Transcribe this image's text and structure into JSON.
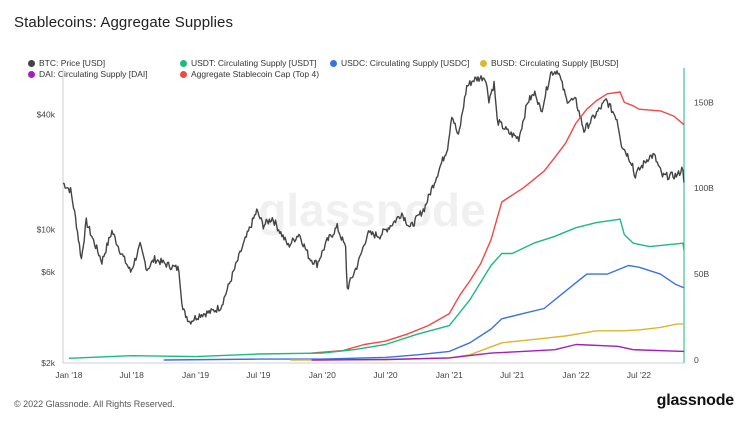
{
  "title": "Stablecoins: Aggregate Supplies",
  "footer": {
    "copyright": "© 2022 Glassnode. All Rights Reserved.",
    "logo": "glassnode"
  },
  "watermark": "glassnode",
  "legend": [
    {
      "label": "BTC: Price [USD]",
      "color": "#444444"
    },
    {
      "label": "USDT: Circulating Supply [USDT]",
      "color": "#1db97e"
    },
    {
      "label": "USDC: Circulating Supply [USDC]",
      "color": "#3b72e0"
    },
    {
      "label": "BUSD: Circulating Supply [BUSD]",
      "color": "#d8b830"
    },
    {
      "label": "DAI: Circulating Supply [DAI]",
      "color": "#a020b8"
    },
    {
      "label": "Aggregate Stablecoin Cap (Top 4)",
      "color": "#f04848"
    }
  ],
  "chart_data": {
    "type": "line",
    "title": "Stablecoins: Aggregate Supplies",
    "x_ticks": [
      "Jan '18",
      "Jul '18",
      "Jan '19",
      "Jul '19",
      "Jan '20",
      "Jul '20",
      "Jan '21",
      "Jul '21",
      "Jan '22",
      "Jul '22"
    ],
    "x_range": [
      "2017-12-15",
      "2022-11-08"
    ],
    "y_left": {
      "scale": "log",
      "range": [
        2000,
        70000
      ],
      "ticks": [
        "$2k",
        "$6k",
        "$10k",
        "$40k"
      ],
      "tick_values": [
        2000,
        6000,
        10000,
        40000
      ]
    },
    "y_right": {
      "scale": "linear",
      "range": [
        0,
        170
      ],
      "unit": "B",
      "ticks": [
        "0",
        "50B",
        "100B",
        "150B"
      ],
      "tick_values": [
        0,
        50,
        100,
        150
      ]
    },
    "series": [
      {
        "name": "BTC: Price [USD]",
        "axis": "left",
        "color": "#444444",
        "points": [
          [
            "2017-12-15",
            17500
          ],
          [
            "2018-01-06",
            16000
          ],
          [
            "2018-01-20",
            11500
          ],
          [
            "2018-02-06",
            7000
          ],
          [
            "2018-02-20",
            11000
          ],
          [
            "2018-03-10",
            9000
          ],
          [
            "2018-04-06",
            6800
          ],
          [
            "2018-05-05",
            9800
          ],
          [
            "2018-06-01",
            7500
          ],
          [
            "2018-06-28",
            6000
          ],
          [
            "2018-07-25",
            8200
          ],
          [
            "2018-08-14",
            6200
          ],
          [
            "2018-09-05",
            7000
          ],
          [
            "2018-10-15",
            6500
          ],
          [
            "2018-11-14",
            6200
          ],
          [
            "2018-11-25",
            3800
          ],
          [
            "2018-12-15",
            3300
          ],
          [
            "2019-01-15",
            3600
          ],
          [
            "2019-02-15",
            3700
          ],
          [
            "2019-03-15",
            3950
          ],
          [
            "2019-04-05",
            5000
          ],
          [
            "2019-05-15",
            8000
          ],
          [
            "2019-06-26",
            12500
          ],
          [
            "2019-07-15",
            10500
          ],
          [
            "2019-08-10",
            11500
          ],
          [
            "2019-09-25",
            8200
          ],
          [
            "2019-10-26",
            9500
          ],
          [
            "2019-11-25",
            7100
          ],
          [
            "2019-12-17",
            6600
          ],
          [
            "2020-01-15",
            8700
          ],
          [
            "2020-02-13",
            10300
          ],
          [
            "2020-03-08",
            8000
          ],
          [
            "2020-03-13",
            4900
          ],
          [
            "2020-04-15",
            6800
          ],
          [
            "2020-05-10",
            9500
          ],
          [
            "2020-06-15",
            9300
          ],
          [
            "2020-07-27",
            11000
          ],
          [
            "2020-08-17",
            12200
          ],
          [
            "2020-09-10",
            10200
          ],
          [
            "2020-10-21",
            12900
          ],
          [
            "2020-11-25",
            19000
          ],
          [
            "2020-12-27",
            27000
          ],
          [
            "2021-01-08",
            40000
          ],
          [
            "2021-01-27",
            30500
          ],
          [
            "2021-02-20",
            56000
          ],
          [
            "2021-03-13",
            61000
          ],
          [
            "2021-04-14",
            63000
          ],
          [
            "2021-04-25",
            48000
          ],
          [
            "2021-05-10",
            58000
          ],
          [
            "2021-05-19",
            37000
          ],
          [
            "2021-06-22",
            32000
          ],
          [
            "2021-07-20",
            30000
          ],
          [
            "2021-08-15",
            47000
          ],
          [
            "2021-09-07",
            52000
          ],
          [
            "2021-09-22",
            41000
          ],
          [
            "2021-10-20",
            66000
          ],
          [
            "2021-11-10",
            68000
          ],
          [
            "2021-12-04",
            48000
          ],
          [
            "2022-01-01",
            47000
          ],
          [
            "2022-01-24",
            33000
          ],
          [
            "2022-03-29",
            47500
          ],
          [
            "2022-04-29",
            38000
          ],
          [
            "2022-05-12",
            28000
          ],
          [
            "2022-06-13",
            22000
          ],
          [
            "2022-06-18",
            19000
          ],
          [
            "2022-07-30",
            24000
          ],
          [
            "2022-08-14",
            24400
          ],
          [
            "2022-09-07",
            19000
          ],
          [
            "2022-10-20",
            19200
          ],
          [
            "2022-11-05",
            21000
          ],
          [
            "2022-11-08",
            17600
          ]
        ]
      },
      {
        "name": "Aggregate Stablecoin Cap (Top 4)",
        "axis": "right",
        "color": "#f04848",
        "points": [
          [
            "2019-12-01",
            4
          ],
          [
            "2020-03-01",
            5.5
          ],
          [
            "2020-05-01",
            9
          ],
          [
            "2020-07-01",
            11
          ],
          [
            "2020-09-01",
            15
          ],
          [
            "2020-11-01",
            20
          ],
          [
            "2021-01-01",
            27
          ],
          [
            "2021-02-01",
            38
          ],
          [
            "2021-03-01",
            46
          ],
          [
            "2021-04-01",
            56
          ],
          [
            "2021-05-01",
            70
          ],
          [
            "2021-06-01",
            92
          ],
          [
            "2021-07-01",
            96
          ],
          [
            "2021-08-01",
            100
          ],
          [
            "2021-09-01",
            105
          ],
          [
            "2021-10-01",
            110
          ],
          [
            "2021-11-01",
            118
          ],
          [
            "2021-12-01",
            126
          ],
          [
            "2022-01-01",
            138
          ],
          [
            "2022-02-01",
            146
          ],
          [
            "2022-03-01",
            151
          ],
          [
            "2022-04-01",
            155
          ],
          [
            "2022-05-08",
            156
          ],
          [
            "2022-05-20",
            150
          ],
          [
            "2022-06-15",
            148
          ],
          [
            "2022-07-01",
            146
          ],
          [
            "2022-09-01",
            145
          ],
          [
            "2022-10-10",
            142
          ],
          [
            "2022-11-08",
            137
          ]
        ]
      },
      {
        "name": "USDT: Circulating Supply [USDT]",
        "axis": "right",
        "color": "#1db97e",
        "points": [
          [
            "2018-01-01",
            1
          ],
          [
            "2018-07-01",
            2.5
          ],
          [
            "2019-01-01",
            2
          ],
          [
            "2019-07-01",
            3.5
          ],
          [
            "2020-01-01",
            4
          ],
          [
            "2020-04-01",
            6
          ],
          [
            "2020-07-01",
            9
          ],
          [
            "2020-10-01",
            15
          ],
          [
            "2021-01-01",
            20
          ],
          [
            "2021-03-01",
            35
          ],
          [
            "2021-05-01",
            55
          ],
          [
            "2021-06-01",
            62
          ],
          [
            "2021-07-01",
            62
          ],
          [
            "2021-09-01",
            68
          ],
          [
            "2021-11-01",
            72
          ],
          [
            "2022-01-01",
            77
          ],
          [
            "2022-03-01",
            80
          ],
          [
            "2022-05-08",
            82
          ],
          [
            "2022-05-20",
            73
          ],
          [
            "2022-06-15",
            68
          ],
          [
            "2022-08-01",
            66
          ],
          [
            "2022-11-05",
            68
          ],
          [
            "2022-11-08",
            64
          ]
        ]
      },
      {
        "name": "USDC: Circulating Supply [USDC]",
        "axis": "right",
        "color": "#3b72e0",
        "points": [
          [
            "2018-10-01",
            0
          ],
          [
            "2019-07-01",
            0.5
          ],
          [
            "2020-01-01",
            0.5
          ],
          [
            "2020-07-01",
            1.5
          ],
          [
            "2020-10-01",
            3
          ],
          [
            "2021-01-01",
            5
          ],
          [
            "2021-03-01",
            10
          ],
          [
            "2021-05-01",
            18
          ],
          [
            "2021-06-01",
            24
          ],
          [
            "2021-08-01",
            27
          ],
          [
            "2021-10-01",
            30
          ],
          [
            "2021-12-01",
            40
          ],
          [
            "2022-01-01",
            45
          ],
          [
            "2022-02-01",
            50
          ],
          [
            "2022-04-01",
            50
          ],
          [
            "2022-06-01",
            55
          ],
          [
            "2022-07-01",
            54
          ],
          [
            "2022-09-01",
            50
          ],
          [
            "2022-10-15",
            44
          ],
          [
            "2022-11-08",
            42
          ]
        ]
      },
      {
        "name": "BUSD: Circulating Supply [BUSD]",
        "axis": "right",
        "color": "#d8b830",
        "points": [
          [
            "2019-10-01",
            0
          ],
          [
            "2020-07-01",
            0.2
          ],
          [
            "2021-01-01",
            1.2
          ],
          [
            "2021-03-01",
            3
          ],
          [
            "2021-06-01",
            10
          ],
          [
            "2021-09-01",
            12
          ],
          [
            "2021-12-01",
            14
          ],
          [
            "2022-03-01",
            17
          ],
          [
            "2022-05-15",
            17
          ],
          [
            "2022-07-01",
            17.5
          ],
          [
            "2022-09-01",
            19
          ],
          [
            "2022-10-20",
            21
          ],
          [
            "2022-11-08",
            21
          ]
        ]
      },
      {
        "name": "DAI: Circulating Supply [DAI]",
        "axis": "right",
        "color": "#a020b8",
        "points": [
          [
            "2019-12-01",
            0
          ],
          [
            "2020-07-01",
            0.3
          ],
          [
            "2021-01-01",
            1.2
          ],
          [
            "2021-05-01",
            4
          ],
          [
            "2021-08-01",
            5
          ],
          [
            "2021-11-01",
            6
          ],
          [
            "2022-01-01",
            9
          ],
          [
            "2022-05-01",
            8
          ],
          [
            "2022-06-15",
            6
          ],
          [
            "2022-11-08",
            5
          ]
        ]
      }
    ]
  }
}
